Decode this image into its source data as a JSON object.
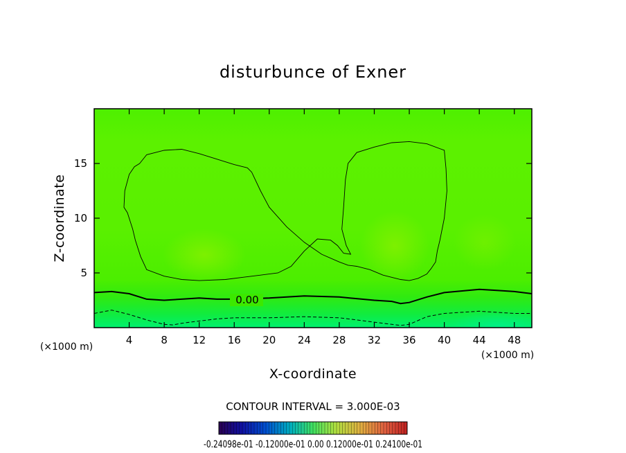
{
  "chart_data": {
    "type": "heatmap",
    "title": "disturbunce of Exner",
    "xlabel": "X-coordinate",
    "ylabel": "Z-coordinate",
    "x_unit_left": "(×1000 m)",
    "x_unit_right": "(×1000 m)",
    "xlim": [
      0,
      50
    ],
    "ylim": [
      0,
      20
    ],
    "x_ticks": [
      4,
      8,
      12,
      16,
      20,
      24,
      28,
      32,
      36,
      40,
      44,
      48
    ],
    "x_tick_labels": [
      "4",
      "8",
      "12",
      "16",
      "20",
      "24",
      "28",
      "32",
      "36",
      "40",
      "44",
      "48"
    ],
    "y_ticks": [
      5,
      10,
      15
    ],
    "y_tick_labels": [
      "5",
      "10",
      "15"
    ],
    "contour_interval_text": "CONTOUR INTERVAL = 3.000E-03",
    "contour_label": "0.00",
    "zero_contour": [
      [
        0,
        3.2
      ],
      [
        2,
        3.3
      ],
      [
        4,
        3.1
      ],
      [
        6,
        2.6
      ],
      [
        8,
        2.5
      ],
      [
        10,
        2.6
      ],
      [
        12,
        2.7
      ],
      [
        14,
        2.6
      ],
      [
        16,
        2.6
      ],
      [
        20,
        2.7
      ],
      [
        24,
        2.9
      ],
      [
        28,
        2.8
      ],
      [
        32,
        2.5
      ],
      [
        34,
        2.4
      ],
      [
        35,
        2.2
      ],
      [
        36,
        2.3
      ],
      [
        38,
        2.8
      ],
      [
        40,
        3.2
      ],
      [
        44,
        3.5
      ],
      [
        46,
        3.4
      ],
      [
        48,
        3.3
      ],
      [
        50,
        3.1
      ]
    ],
    "negative_contour": [
      [
        0,
        1.3
      ],
      [
        2,
        1.6
      ],
      [
        4,
        1.2
      ],
      [
        6,
        0.7
      ],
      [
        8,
        0.3
      ],
      [
        9,
        0.25
      ],
      [
        10,
        0.4
      ],
      [
        12,
        0.6
      ],
      [
        14,
        0.8
      ],
      [
        16,
        0.9
      ],
      [
        20,
        0.9
      ],
      [
        24,
        1.0
      ],
      [
        28,
        0.9
      ],
      [
        32,
        0.5
      ],
      [
        34,
        0.3
      ],
      [
        35,
        0.2
      ],
      [
        36,
        0.3
      ],
      [
        38,
        1.0
      ],
      [
        40,
        1.3
      ],
      [
        44,
        1.5
      ],
      [
        46,
        1.4
      ],
      [
        48,
        1.3
      ],
      [
        50,
        1.3
      ]
    ],
    "positive_contour_left": [
      [
        5.2,
        15.0
      ],
      [
        6,
        15.8
      ],
      [
        8,
        16.2
      ],
      [
        10,
        16.3
      ],
      [
        12,
        15.9
      ],
      [
        14,
        15.4
      ],
      [
        16,
        14.9
      ],
      [
        17.5,
        14.6
      ],
      [
        18,
        14.2
      ],
      [
        19,
        12.5
      ],
      [
        20,
        11.0
      ],
      [
        22,
        9.2
      ],
      [
        24,
        7.8
      ],
      [
        26,
        6.7
      ],
      [
        28,
        6.0
      ],
      [
        29,
        5.7
      ],
      [
        30,
        5.6
      ],
      [
        31.5,
        5.3
      ],
      [
        33,
        4.8
      ],
      [
        35,
        4.4
      ],
      [
        36,
        4.3
      ],
      [
        37,
        4.5
      ],
      [
        38,
        4.9
      ],
      [
        38.5,
        5.4
      ],
      [
        39,
        6.0
      ],
      [
        39.2,
        7.0
      ],
      [
        39.5,
        8.0
      ],
      [
        40,
        10.0
      ],
      [
        40.3,
        12.5
      ],
      [
        40.2,
        14.5
      ],
      [
        40,
        16.2
      ],
      [
        38,
        16.8
      ],
      [
        36,
        17.0
      ],
      [
        34,
        16.9
      ],
      [
        32,
        16.5
      ],
      [
        30,
        16.0
      ],
      [
        29,
        15.0
      ],
      [
        28.7,
        13.5
      ],
      [
        28.5,
        11.0
      ],
      [
        28.3,
        9.0
      ],
      [
        28.8,
        7.5
      ],
      [
        29.3,
        6.7
      ],
      [
        28.5,
        6.8
      ],
      [
        27.8,
        7.5
      ],
      [
        27,
        8.0
      ],
      [
        25.5,
        8.1
      ],
      [
        24,
        7.0
      ],
      [
        22.5,
        5.6
      ],
      [
        21,
        5.0
      ],
      [
        19,
        4.8
      ],
      [
        17,
        4.6
      ],
      [
        15,
        4.4
      ],
      [
        12,
        4.3
      ],
      [
        10,
        4.4
      ],
      [
        8,
        4.7
      ],
      [
        6,
        5.3
      ],
      [
        5.3,
        6.5
      ],
      [
        4.7,
        8.0
      ],
      [
        4.4,
        9.0
      ],
      [
        3.8,
        10.5
      ],
      [
        3.4,
        11.0
      ],
      [
        3.5,
        12.5
      ],
      [
        4.0,
        14.0
      ],
      [
        4.6,
        14.7
      ],
      [
        5.2,
        15.0
      ]
    ],
    "colorbar": {
      "label_text": "-0.24098e-01 -0.12000e-01 0.00 0.12000e-01 0.24100e-01",
      "ticks": [
        "-0.24098e-01",
        "-0.12000e-01",
        "0.000",
        "0.12000e-01",
        "0.24100e-01"
      ]
    },
    "field_colors": {
      "top": "#4cf000",
      "upper": "#5af000",
      "mid": "#56ef00",
      "low": "#30ec00",
      "bottom": "#00f060",
      "warm": "#7cf000"
    }
  }
}
